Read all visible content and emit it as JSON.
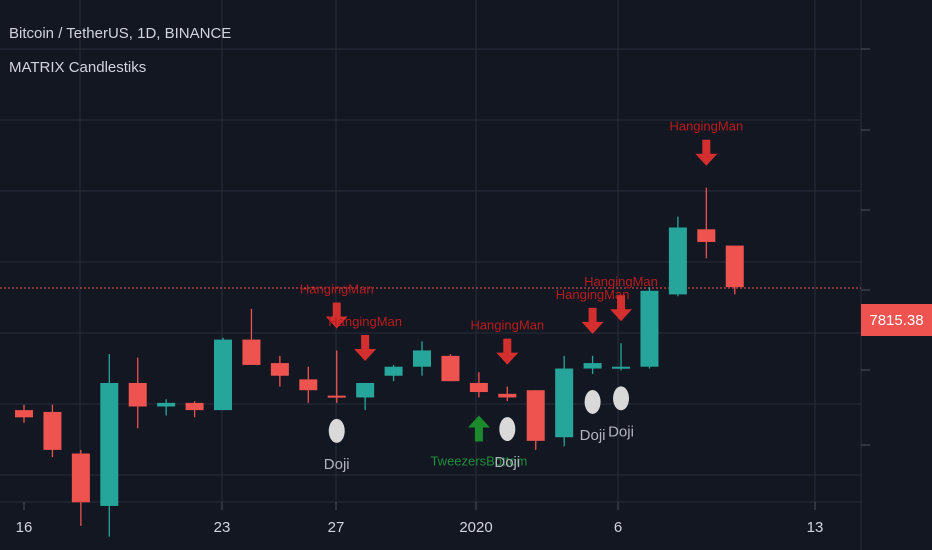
{
  "header": {
    "title": "Bitcoin / TetherUS, 1D, BINANCE",
    "indicator_name": "MATRIX Candlestiks"
  },
  "price_label": {
    "value": "7815.38",
    "color": "#ef5350"
  },
  "colors": {
    "background": "#131722",
    "grid": "#2a2e39",
    "bull": "#26a69a",
    "bear": "#ef5350",
    "text": "#d1d4dc",
    "arrow_down": "#d32f2f",
    "arrow_up": "#1b8a2d",
    "label_red": "#b71c1c",
    "label_green": "#1e8f3a",
    "doji_marker": "#d9d9d9"
  },
  "chart_data": {
    "type": "candlestick",
    "title": "Bitcoin / TetherUS, 1D, BINANCE",
    "x_tick_labels": [
      "16",
      "23",
      "27",
      "2020",
      "6",
      "13"
    ],
    "last_price": 7815.38,
    "candles": [
      {
        "i": 0,
        "o": 7140,
        "h": 7170,
        "l": 7070,
        "c": 7100
      },
      {
        "i": 1,
        "o": 7130,
        "h": 7170,
        "l": 6880,
        "c": 6920
      },
      {
        "i": 2,
        "o": 6900,
        "h": 6920,
        "l": 6500,
        "c": 6630
      },
      {
        "i": 3,
        "o": 6610,
        "h": 7450,
        "l": 6440,
        "c": 7290
      },
      {
        "i": 4,
        "o": 7290,
        "h": 7430,
        "l": 7040,
        "c": 7160
      },
      {
        "i": 5,
        "o": 7160,
        "h": 7200,
        "l": 7110,
        "c": 7180
      },
      {
        "i": 6,
        "o": 7180,
        "h": 7190,
        "l": 7100,
        "c": 7140
      },
      {
        "i": 7,
        "o": 7140,
        "h": 7540,
        "l": 7140,
        "c": 7530
      },
      {
        "i": 8,
        "o": 7530,
        "h": 7700,
        "l": 7400,
        "c": 7390
      },
      {
        "i": 9,
        "o": 7400,
        "h": 7440,
        "l": 7270,
        "c": 7330
      },
      {
        "i": 10,
        "o": 7310,
        "h": 7380,
        "l": 7180,
        "c": 7250
      },
      {
        "i": 11,
        "o": 7220,
        "h": 7470,
        "l": 7180,
        "c": 7210
      },
      {
        "i": 12,
        "o": 7210,
        "h": 7290,
        "l": 7140,
        "c": 7290
      },
      {
        "i": 13,
        "o": 7330,
        "h": 7390,
        "l": 7300,
        "c": 7380
      },
      {
        "i": 14,
        "o": 7380,
        "h": 7520,
        "l": 7330,
        "c": 7470
      },
      {
        "i": 15,
        "o": 7440,
        "h": 7450,
        "l": 7300,
        "c": 7300
      },
      {
        "i": 16,
        "o": 7290,
        "h": 7350,
        "l": 7210,
        "c": 7240
      },
      {
        "i": 17,
        "o": 7230,
        "h": 7270,
        "l": 7190,
        "c": 7210
      },
      {
        "i": 18,
        "o": 7250,
        "h": 7250,
        "l": 6920,
        "c": 6970
      },
      {
        "i": 19,
        "o": 6990,
        "h": 7440,
        "l": 6940,
        "c": 7370
      },
      {
        "i": 20,
        "o": 7370,
        "h": 7440,
        "l": 7340,
        "c": 7400
      },
      {
        "i": 21,
        "o": 7380,
        "h": 7510,
        "l": 7360,
        "c": 7380
      },
      {
        "i": 22,
        "o": 7380,
        "h": 7820,
        "l": 7370,
        "c": 7800
      },
      {
        "i": 23,
        "o": 7780,
        "h": 8210,
        "l": 7770,
        "c": 8150
      },
      {
        "i": 24,
        "o": 8140,
        "h": 8370,
        "l": 7980,
        "c": 8070
      },
      {
        "i": 25,
        "o": 8050,
        "h": 8050,
        "l": 7780,
        "c": 7820
      }
    ],
    "signals": [
      {
        "type": "arrow-down",
        "candle": 11,
        "label": "HangingMan"
      },
      {
        "type": "arrow-down",
        "candle": 12,
        "label": "HangingMan"
      },
      {
        "type": "arrow-down",
        "candle": 17,
        "label": "HangingMan"
      },
      {
        "type": "arrow-down",
        "candle": 20,
        "label": "HangingMan"
      },
      {
        "type": "arrow-down",
        "candle": 21,
        "label": "HangingMan"
      },
      {
        "type": "arrow-down",
        "candle": 24,
        "label": "HangingMan"
      },
      {
        "type": "arrow-up",
        "candle": 16,
        "label": "TweezersBottom"
      },
      {
        "type": "doji",
        "candle": 11,
        "label": "Doji"
      },
      {
        "type": "doji",
        "candle": 17,
        "label": "Doji"
      },
      {
        "type": "doji",
        "candle": 20,
        "label": "Doji"
      },
      {
        "type": "doji",
        "candle": 21,
        "label": "Doji"
      }
    ]
  }
}
